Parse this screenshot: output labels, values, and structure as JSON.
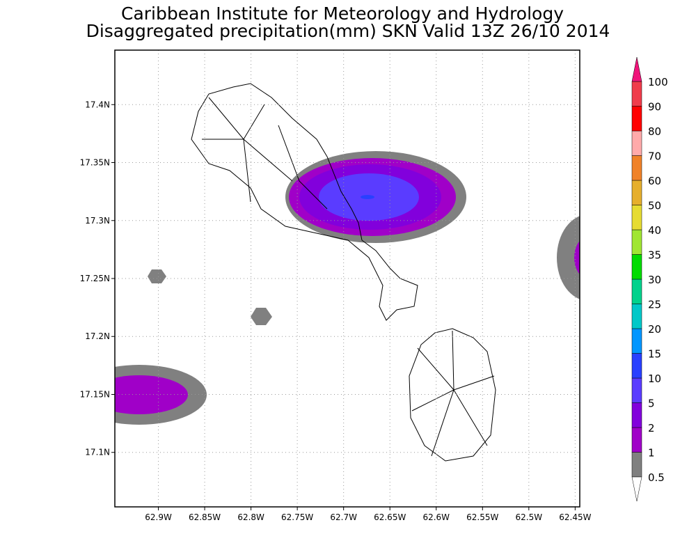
{
  "header": {
    "title": "Caribbean Institute for Meteorology and Hydrology",
    "subtitle": "Disaggregated precipitation(mm) SKN Valid 13Z 26/10 2014"
  },
  "map": {
    "xlim": [
      -62.947,
      -62.445
    ],
    "ylim": [
      17.053,
      17.447
    ],
    "grid": true,
    "xticks": [
      {
        "value": -62.9,
        "label": "62.9W"
      },
      {
        "value": -62.85,
        "label": "62.85W"
      },
      {
        "value": -62.8,
        "label": "62.8W"
      },
      {
        "value": -62.75,
        "label": "62.75W"
      },
      {
        "value": -62.7,
        "label": "62.7W"
      },
      {
        "value": -62.65,
        "label": "62.65W"
      },
      {
        "value": -62.6,
        "label": "62.6W"
      },
      {
        "value": -62.55,
        "label": "62.55W"
      },
      {
        "value": -62.5,
        "label": "62.5W"
      },
      {
        "value": -62.45,
        "label": "62.45W"
      }
    ],
    "yticks": [
      {
        "value": 17.1,
        "label": "17.1N"
      },
      {
        "value": 17.15,
        "label": "17.15N"
      },
      {
        "value": 17.2,
        "label": "17.2N"
      },
      {
        "value": 17.25,
        "label": "17.25N"
      },
      {
        "value": 17.3,
        "label": "17.3N"
      },
      {
        "value": 17.35,
        "label": "17.35N"
      },
      {
        "value": 17.4,
        "label": "17.4N"
      }
    ]
  },
  "colorbar": {
    "levels": [
      0.5,
      1,
      2,
      5,
      10,
      15,
      20,
      25,
      30,
      35,
      40,
      50,
      60,
      70,
      80,
      90,
      100
    ],
    "colors": [
      "#808080",
      "#a000c8",
      "#8200dc",
      "#5a3cff",
      "#2840ff",
      "#0096ff",
      "#00c8c8",
      "#00d28c",
      "#00dc00",
      "#a0e632",
      "#e6dc32",
      "#e6af2d",
      "#f08228",
      "#ffaaaa",
      "#ff0000",
      "#f03c4b"
    ],
    "over_color": "#f0147a",
    "under_color": "#ffffff"
  }
}
